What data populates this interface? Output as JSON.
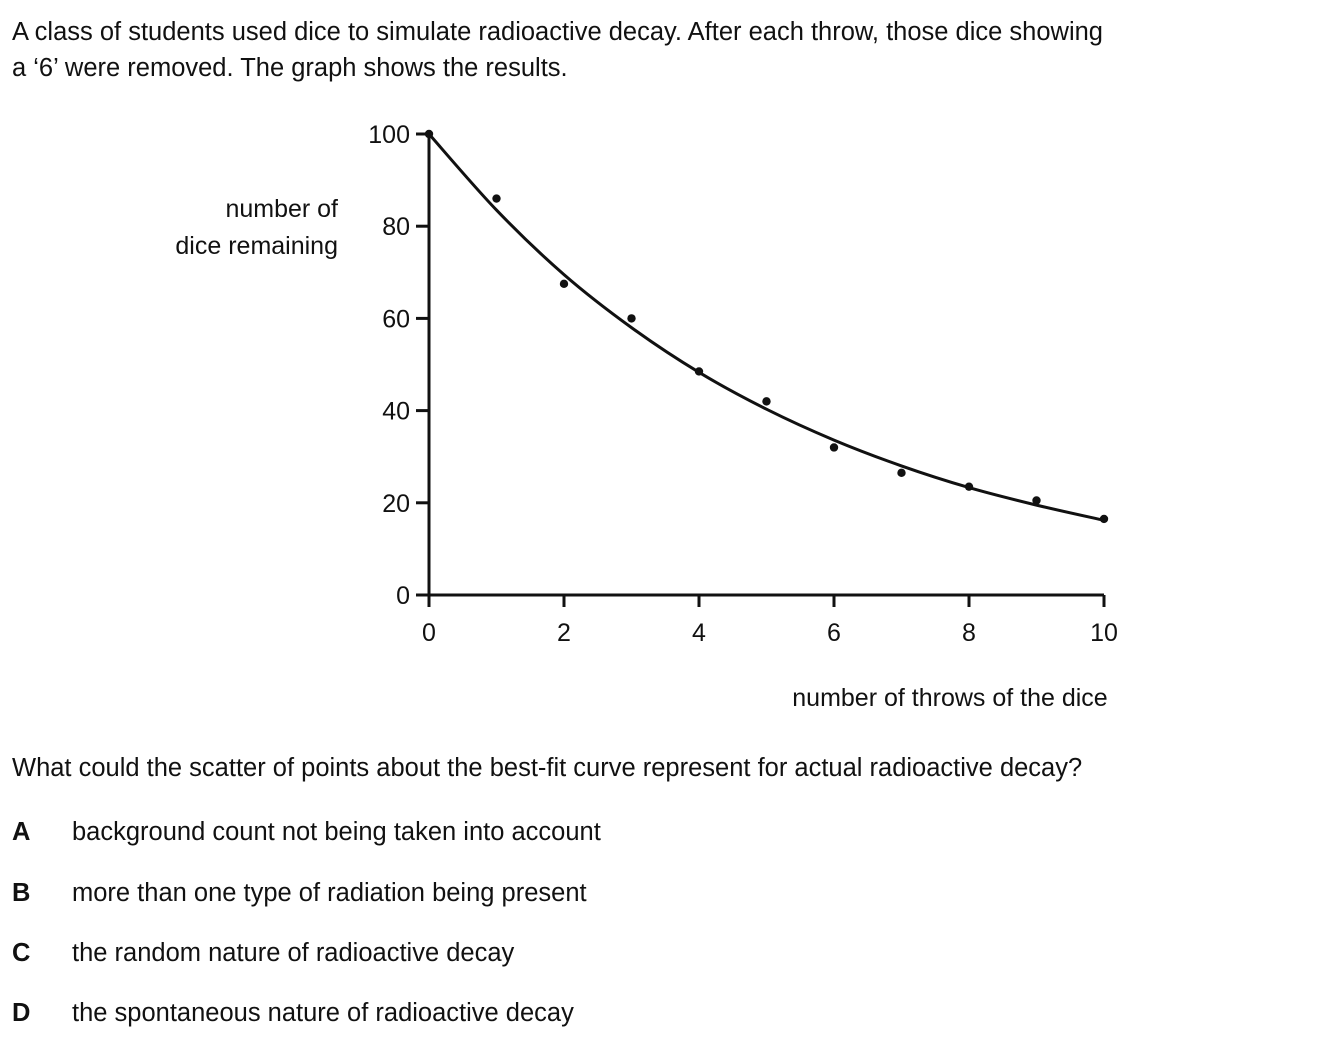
{
  "intro": {
    "line1": "A class of students used dice to simulate radioactive decay. After each throw, those dice showing",
    "line2": "a ‘6’ were removed. The graph shows the results."
  },
  "chart_data": {
    "type": "scatter",
    "title": "",
    "ylabel_line1": "number of",
    "ylabel_line2": "dice remaining",
    "xlabel": "number of throws of the dice",
    "xlim": [
      0,
      10
    ],
    "ylim": [
      0,
      100
    ],
    "x_ticks": [
      0,
      2,
      4,
      6,
      8,
      10
    ],
    "y_ticks": [
      0,
      20,
      40,
      60,
      80,
      100
    ],
    "grid": false,
    "points": [
      {
        "x": 0,
        "y": 100
      },
      {
        "x": 1,
        "y": 86
      },
      {
        "x": 2,
        "y": 67.5
      },
      {
        "x": 3,
        "y": 60
      },
      {
        "x": 4,
        "y": 48.5
      },
      {
        "x": 5,
        "y": 42
      },
      {
        "x": 6,
        "y": 32
      },
      {
        "x": 7,
        "y": 26.5
      },
      {
        "x": 8,
        "y": 23.5
      },
      {
        "x": 9,
        "y": 20.5
      },
      {
        "x": 10,
        "y": 16.5
      }
    ],
    "curve": {
      "type": "best-fit",
      "x": [
        0,
        1,
        2,
        3,
        4,
        5,
        6,
        7,
        8,
        9,
        10
      ],
      "y": [
        100,
        83.5,
        69.5,
        58,
        48.3,
        40.3,
        33.6,
        28,
        23.3,
        19.5,
        16.2
      ]
    }
  },
  "question": "What could the scatter of points about the best-fit curve represent for actual radioactive decay?",
  "options": [
    {
      "letter": "A",
      "text": "background count not being taken into account"
    },
    {
      "letter": "B",
      "text": "more than one type of radiation being present"
    },
    {
      "letter": "C",
      "text": "the random nature of radioactive decay"
    },
    {
      "letter": "D",
      "text": "the spontaneous nature of radioactive decay"
    }
  ]
}
